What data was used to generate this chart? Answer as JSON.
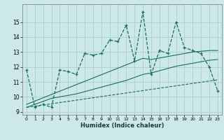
{
  "xlabel": "Humidex (Indice chaleur)",
  "bg_color": "#cce8e8",
  "grid_color": "#aacfcf",
  "line_color": "#1a6e5e",
  "x_values": [
    0,
    1,
    2,
    3,
    4,
    5,
    6,
    7,
    8,
    9,
    10,
    11,
    12,
    13,
    14,
    15,
    16,
    17,
    18,
    19,
    20,
    21,
    22,
    23
  ],
  "y_main": [
    11.8,
    9.3,
    9.5,
    9.3,
    11.8,
    11.7,
    11.5,
    12.9,
    12.8,
    12.9,
    13.8,
    13.7,
    14.8,
    12.4,
    15.7,
    11.5,
    13.1,
    12.9,
    15.0,
    13.3,
    13.1,
    12.9,
    12.0,
    10.4
  ],
  "y_trend1": [
    9.5,
    9.72,
    9.94,
    10.16,
    10.38,
    10.6,
    10.82,
    11.04,
    11.26,
    11.48,
    11.7,
    11.92,
    12.14,
    12.36,
    12.58,
    12.5,
    12.6,
    12.7,
    12.8,
    12.9,
    13.0,
    13.05,
    13.1,
    13.1
  ],
  "y_trend2": [
    9.3,
    9.5,
    9.7,
    9.9,
    10.0,
    10.1,
    10.2,
    10.35,
    10.5,
    10.65,
    10.8,
    10.95,
    11.1,
    11.3,
    11.5,
    11.6,
    11.75,
    11.9,
    12.05,
    12.15,
    12.25,
    12.35,
    12.45,
    12.5
  ],
  "y_flat": [
    9.3,
    9.38,
    9.46,
    9.54,
    9.62,
    9.7,
    9.78,
    9.86,
    9.94,
    10.02,
    10.1,
    10.18,
    10.26,
    10.34,
    10.42,
    10.5,
    10.58,
    10.66,
    10.74,
    10.82,
    10.9,
    10.98,
    11.06,
    11.14
  ],
  "ylim": [
    8.8,
    16.2
  ],
  "yticks": [
    9,
    10,
    11,
    12,
    13,
    14,
    15
  ],
  "xticks": [
    0,
    1,
    2,
    3,
    4,
    5,
    6,
    7,
    8,
    9,
    10,
    11,
    12,
    13,
    14,
    15,
    16,
    17,
    18,
    19,
    20,
    21,
    22,
    23
  ]
}
